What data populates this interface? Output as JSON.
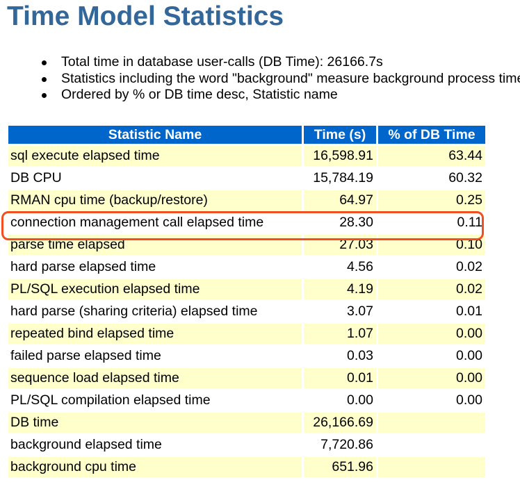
{
  "page": {
    "title": "Time Model Statistics"
  },
  "notes": [
    "Total time in database user-calls (DB Time): 26166.7s",
    "Statistics including the word \"background\" measure background process time, and so do not contribute to the DB time statistic",
    "Ordered by % or DB time desc, Statistic name"
  ],
  "table": {
    "headers": {
      "name": "Statistic Name",
      "time": "Time (s)",
      "pct": "% of DB Time"
    },
    "rows": [
      {
        "name": "sql execute elapsed time",
        "time": "16,598.91",
        "pct": "63.44"
      },
      {
        "name": "DB CPU",
        "time": "15,784.19",
        "pct": "60.32"
      },
      {
        "name": "RMAN cpu time (backup/restore)",
        "time": "64.97",
        "pct": "0.25"
      },
      {
        "name": "connection management call elapsed time",
        "time": "28.30",
        "pct": "0.11"
      },
      {
        "name": "parse time elapsed",
        "time": "27.03",
        "pct": "0.10"
      },
      {
        "name": "hard parse elapsed time",
        "time": "4.56",
        "pct": "0.02"
      },
      {
        "name": "PL/SQL execution elapsed time",
        "time": "4.19",
        "pct": "0.02"
      },
      {
        "name": "hard parse (sharing criteria) elapsed time",
        "time": "3.07",
        "pct": "0.01"
      },
      {
        "name": "repeated bind elapsed time",
        "time": "1.07",
        "pct": "0.00"
      },
      {
        "name": "failed parse elapsed time",
        "time": "0.03",
        "pct": "0.00"
      },
      {
        "name": "sequence load elapsed time",
        "time": "0.01",
        "pct": "0.00"
      },
      {
        "name": "PL/SQL compilation elapsed time",
        "time": "0.00",
        "pct": "0.00"
      },
      {
        "name": "DB time",
        "time": "26,166.69",
        "pct": ""
      },
      {
        "name": "background elapsed time",
        "time": "7,720.86",
        "pct": ""
      },
      {
        "name": "background cpu time",
        "time": "651.96",
        "pct": ""
      }
    ],
    "highlighted_row": "connection management call elapsed time"
  },
  "colors": {
    "title": "#336699",
    "header_bg": "#0066CC",
    "odd_row_bg": "#FFFFCC",
    "highlight_border": "#F04E23"
  }
}
